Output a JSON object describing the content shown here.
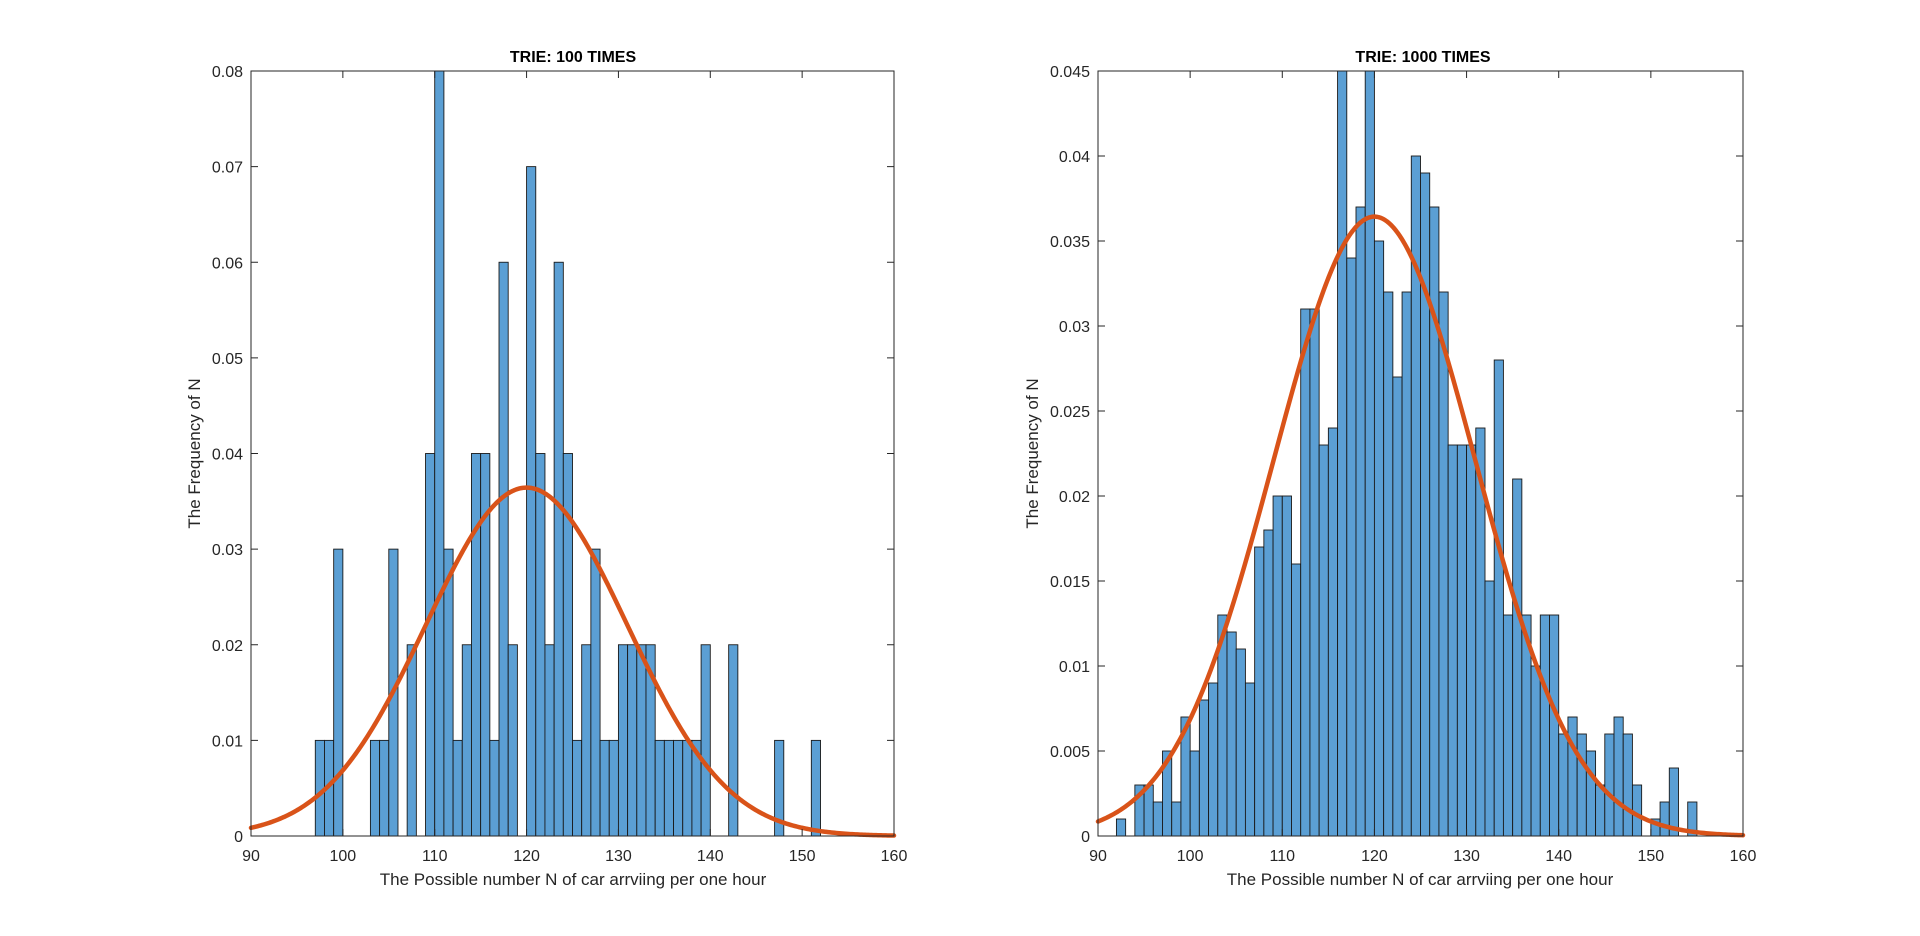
{
  "chart_data": [
    {
      "type": "bar",
      "title": "TRIE: 100 TIMES",
      "xlabel": "The Possible number N of car arrviing per one hour",
      "ylabel": "The Frequency of N",
      "xlim": [
        90,
        160
      ],
      "ylim": [
        0,
        0.08
      ],
      "xticks": [
        "90",
        "100",
        "110",
        "120",
        "130",
        "140",
        "150",
        "160"
      ],
      "yticks": [
        "0",
        "0.01",
        "0.02",
        "0.03",
        "0.04",
        "0.05",
        "0.06",
        "0.07",
        "0.08"
      ],
      "grid": false,
      "bar_color": "#5B9FD4",
      "bar_edge_color": "#1a1a1a",
      "fit_color": "#D95319",
      "bin_width": 1,
      "bins": [
        [
          97,
          0.01
        ],
        [
          98,
          0.01
        ],
        [
          99,
          0.03
        ],
        [
          103,
          0.01
        ],
        [
          104,
          0.01
        ],
        [
          105,
          0.03
        ],
        [
          107,
          0.02
        ],
        [
          109,
          0.04
        ],
        [
          110,
          0.08
        ],
        [
          111,
          0.03
        ],
        [
          112,
          0.01
        ],
        [
          113,
          0.02
        ],
        [
          114,
          0.04
        ],
        [
          115,
          0.04
        ],
        [
          116,
          0.01
        ],
        [
          117,
          0.06
        ],
        [
          118,
          0.02
        ],
        [
          120,
          0.07
        ],
        [
          121,
          0.04
        ],
        [
          122,
          0.02
        ],
        [
          123,
          0.06
        ],
        [
          124,
          0.04
        ],
        [
          125,
          0.01
        ],
        [
          126,
          0.02
        ],
        [
          127,
          0.03
        ],
        [
          128,
          0.01
        ],
        [
          129,
          0.01
        ],
        [
          130,
          0.02
        ],
        [
          131,
          0.02
        ],
        [
          132,
          0.02
        ],
        [
          133,
          0.02
        ],
        [
          134,
          0.01
        ],
        [
          135,
          0.01
        ],
        [
          136,
          0.01
        ],
        [
          137,
          0.01
        ],
        [
          138,
          0.01
        ],
        [
          139,
          0.02
        ],
        [
          142,
          0.02
        ],
        [
          147,
          0.01
        ],
        [
          151,
          0.01
        ]
      ],
      "fit": {
        "kind": "normal",
        "mean": 120,
        "sd": 10.95
      }
    },
    {
      "type": "bar",
      "title": "TRIE: 1000 TIMES",
      "xlabel": "The Possible number N of car arrviing per one hour",
      "ylabel": "The Frequency of N",
      "xlim": [
        90,
        160
      ],
      "ylim": [
        0,
        0.045
      ],
      "xticks": [
        "90",
        "100",
        "110",
        "120",
        "130",
        "140",
        "150",
        "160"
      ],
      "yticks": [
        "0",
        "0.005",
        "0.01",
        "0.015",
        "0.02",
        "0.025",
        "0.03",
        "0.035",
        "0.04",
        "0.045"
      ],
      "grid": false,
      "bar_color": "#5B9FD4",
      "bar_edge_color": "#1a1a1a",
      "fit_color": "#D95319",
      "bin_width": 1,
      "bins": [
        [
          92,
          0.001
        ],
        [
          94,
          0.003
        ],
        [
          95,
          0.003
        ],
        [
          96,
          0.002
        ],
        [
          97,
          0.005
        ],
        [
          98,
          0.002
        ],
        [
          99,
          0.007
        ],
        [
          100,
          0.005
        ],
        [
          101,
          0.008
        ],
        [
          102,
          0.009
        ],
        [
          103,
          0.013
        ],
        [
          104,
          0.012
        ],
        [
          105,
          0.011
        ],
        [
          106,
          0.009
        ],
        [
          107,
          0.017
        ],
        [
          108,
          0.018
        ],
        [
          109,
          0.02
        ],
        [
          110,
          0.02
        ],
        [
          111,
          0.016
        ],
        [
          112,
          0.031
        ],
        [
          113,
          0.031
        ],
        [
          114,
          0.023
        ],
        [
          115,
          0.024
        ],
        [
          116,
          0.045
        ],
        [
          117,
          0.034
        ],
        [
          118,
          0.037
        ],
        [
          119,
          0.045
        ],
        [
          120,
          0.035
        ],
        [
          121,
          0.032
        ],
        [
          122,
          0.027
        ],
        [
          123,
          0.032
        ],
        [
          124,
          0.04
        ],
        [
          125,
          0.039
        ],
        [
          126,
          0.037
        ],
        [
          127,
          0.032
        ],
        [
          128,
          0.023
        ],
        [
          129,
          0.023
        ],
        [
          130,
          0.023
        ],
        [
          131,
          0.024
        ],
        [
          132,
          0.015
        ],
        [
          133,
          0.028
        ],
        [
          134,
          0.013
        ],
        [
          135,
          0.021
        ],
        [
          136,
          0.013
        ],
        [
          137,
          0.01
        ],
        [
          138,
          0.013
        ],
        [
          139,
          0.013
        ],
        [
          140,
          0.006
        ],
        [
          141,
          0.007
        ],
        [
          142,
          0.006
        ],
        [
          143,
          0.005
        ],
        [
          144,
          0.003
        ],
        [
          145,
          0.006
        ],
        [
          146,
          0.007
        ],
        [
          147,
          0.006
        ],
        [
          148,
          0.003
        ],
        [
          150,
          0.001
        ],
        [
          151,
          0.002
        ],
        [
          152,
          0.004
        ],
        [
          154,
          0.002
        ]
      ],
      "fit": {
        "kind": "normal",
        "mean": 120,
        "sd": 10.95
      }
    }
  ]
}
